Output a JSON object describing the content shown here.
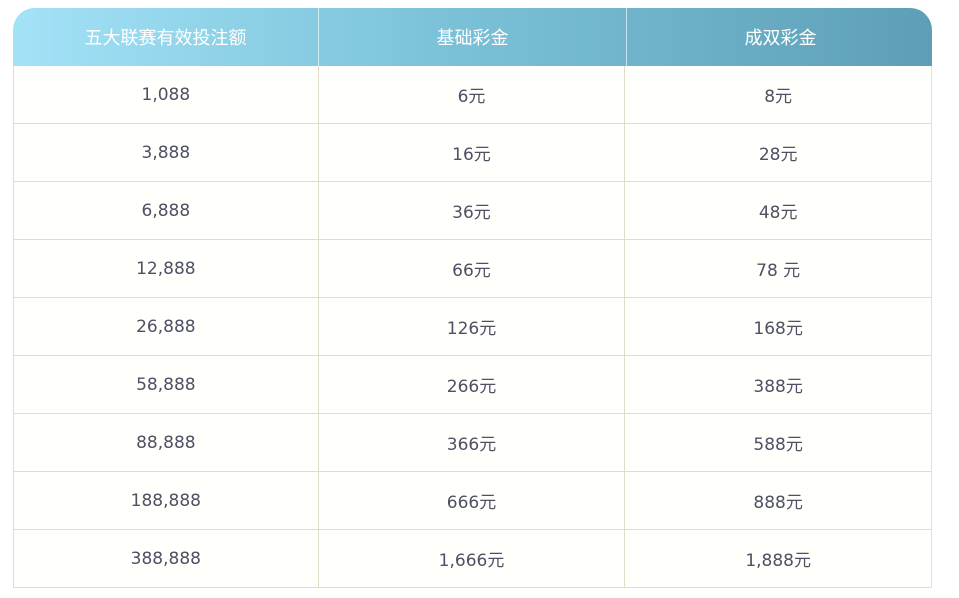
{
  "table": {
    "headers": [
      "五大联赛有效投注额",
      "基础彩金",
      "成双彩金"
    ],
    "rows": [
      [
        "1,088",
        "6元",
        "8元"
      ],
      [
        "3,888",
        "16元",
        "28元"
      ],
      [
        "6,888",
        "36元",
        "48元"
      ],
      [
        "12,888",
        "66元",
        "78 元"
      ],
      [
        "26,888",
        "126元",
        "168元"
      ],
      [
        "58,888",
        "266元",
        "388元"
      ],
      [
        "88,888",
        "366元",
        "588元"
      ],
      [
        "188,888",
        "666元",
        "888元"
      ],
      [
        "388,888",
        "1,666元",
        "1,888元"
      ]
    ],
    "colors": {
      "header_start": "#a3e2f7",
      "header_end": "#5d9fb6",
      "border": "#e2dccb",
      "text": "#4e5063"
    }
  }
}
